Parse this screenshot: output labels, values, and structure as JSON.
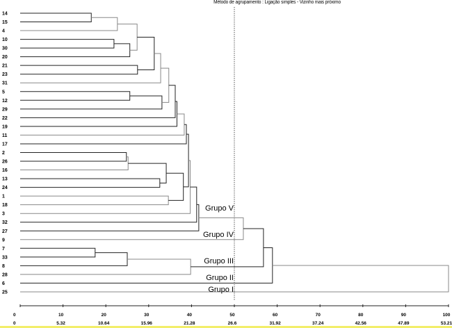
{
  "title": "Método de agrupamento : Ligação simples - Vizinho mais próximo",
  "chart_data": {
    "type": "dendrogram",
    "orientation": "horizontal",
    "title": "Método de agrupamento : Ligação simples - Vizinho mais próximo",
    "leaves": [
      "14",
      "15",
      "4",
      "10",
      "30",
      "20",
      "21",
      "23",
      "31",
      "5",
      "12",
      "29",
      "22",
      "19",
      "11",
      "17",
      "2",
      "26",
      "16",
      "13",
      "24",
      "1",
      "18",
      "3",
      "32",
      "27",
      "9",
      "7",
      "33",
      "8",
      "28",
      "6",
      "25"
    ],
    "merges": [
      {
        "a": "14",
        "b": "15",
        "height": 16.6,
        "id": "m1"
      },
      {
        "a": "m1",
        "b": "4",
        "height": 22.7,
        "id": "m2"
      },
      {
        "a": "10",
        "b": "30",
        "height": 21.9,
        "id": "m3"
      },
      {
        "a": "m3",
        "b": "20",
        "height": 25.6,
        "id": "m4"
      },
      {
        "a": "m2",
        "b": "m4",
        "height": 27.3,
        "id": "m5"
      },
      {
        "a": "21",
        "b": "23",
        "height": 27.4,
        "id": "m6"
      },
      {
        "a": "m5",
        "b": "m6",
        "height": 31.3,
        "id": "m7"
      },
      {
        "a": "m7",
        "b": "31",
        "height": 32.8,
        "id": "m8"
      },
      {
        "a": "5",
        "b": "12",
        "height": 25.6,
        "id": "m9"
      },
      {
        "a": "m9",
        "b": "29",
        "height": 33.1,
        "id": "m10"
      },
      {
        "a": "m8",
        "b": "m10",
        "height": 34.7,
        "id": "m11"
      },
      {
        "a": "m11",
        "b": "22",
        "height": 36.2,
        "id": "m12"
      },
      {
        "a": "m12",
        "b": "19",
        "height": 36.6,
        "id": "m13"
      },
      {
        "a": "m13",
        "b": "11",
        "height": 38.3,
        "id": "m14"
      },
      {
        "a": "m14",
        "b": "17",
        "height": 38.8,
        "id": "m15"
      },
      {
        "a": "2",
        "b": "26",
        "height": 24.8,
        "id": "m16"
      },
      {
        "a": "m16",
        "b": "16",
        "height": 25.2,
        "id": "m17"
      },
      {
        "a": "13",
        "b": "24",
        "height": 32.6,
        "id": "m18"
      },
      {
        "a": "m17",
        "b": "m18",
        "height": 34.1,
        "id": "m19"
      },
      {
        "a": "1",
        "b": "18",
        "height": 34.6,
        "id": "m20"
      },
      {
        "a": "m19",
        "b": "m20",
        "height": 38.1,
        "id": "m21"
      },
      {
        "a": "m15",
        "b": "m21",
        "height": 39.3,
        "id": "m22"
      },
      {
        "a": "m22",
        "b": "3",
        "height": 39.7,
        "id": "m23"
      },
      {
        "a": "m23",
        "b": "32",
        "height": 41.2,
        "id": "m24"
      },
      {
        "a": "m24",
        "b": "27",
        "height": 41.7,
        "id": "m25"
      },
      {
        "a": "m25",
        "b": "9",
        "height": 52.1,
        "id": "m26"
      },
      {
        "a": "7",
        "b": "33",
        "height": 17.5,
        "id": "m27"
      },
      {
        "a": "m27",
        "b": "8",
        "height": 25.0,
        "id": "m28"
      },
      {
        "a": "m28",
        "b": "28",
        "height": 39.8,
        "id": "m29"
      },
      {
        "a": "m26",
        "b": "m29",
        "height": 56.8,
        "id": "m30"
      },
      {
        "a": "m30",
        "b": "6",
        "height": 58.9,
        "id": "m31"
      },
      {
        "a": "m31",
        "b": "25",
        "height": 100,
        "id": "m32"
      }
    ],
    "cut_line": 50,
    "xlim": [
      0,
      100
    ],
    "ticks": [
      0,
      10,
      20,
      30,
      40,
      50,
      60,
      70,
      80,
      90,
      100
    ],
    "secondary_tick_labels": [
      "0",
      "5.32",
      "10.64",
      "15.96",
      "21.28",
      "26.6",
      "31.92",
      "37.24",
      "42.56",
      "47.89",
      "53.21"
    ],
    "group_labels": [
      {
        "label": "Grupo V",
        "near_leaf": "3"
      },
      {
        "label": "Grupo IV",
        "near_leaf": "27"
      },
      {
        "label": "Grupo III",
        "near_leaf": "8"
      },
      {
        "label": "Grupo II",
        "near_leaf": "28"
      },
      {
        "label": "Grupo I",
        "near_leaf": "6"
      }
    ]
  }
}
